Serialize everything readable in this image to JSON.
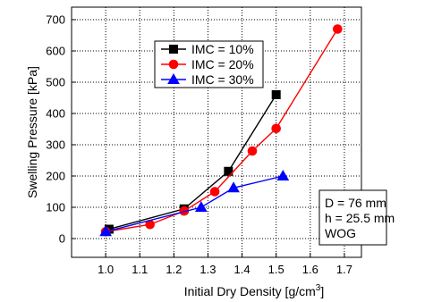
{
  "chart_data": {
    "type": "line",
    "title": "",
    "xlabel": "Initial Dry Density [g/cm",
    "xlabel_sup": "3",
    "xlabel_end": "]",
    "ylabel": "Swelling Pressure [kPa]",
    "xlim": [
      0.9,
      1.75
    ],
    "ylim": [
      -60,
      740
    ],
    "xticks": [
      1.0,
      1.1,
      1.2,
      1.3,
      1.4,
      1.5,
      1.6,
      1.7
    ],
    "yticks": [
      0,
      100,
      200,
      300,
      400,
      500,
      600,
      700
    ],
    "xtick_labels": [
      "1.0",
      "1.1",
      "1.2",
      "1.3",
      "1.4",
      "1.5",
      "1.6",
      "1.7"
    ],
    "ytick_labels": [
      "0",
      "100",
      "200",
      "300",
      "400",
      "500",
      "600",
      "700"
    ],
    "grid": true,
    "legend_position": "top-left",
    "series": [
      {
        "name": "IMC = 10%",
        "color": "#000000",
        "marker": "square",
        "x": [
          1.01,
          1.23,
          1.36,
          1.5
        ],
        "y": [
          30,
          95,
          215,
          460
        ]
      },
      {
        "name": "IMC = 20%",
        "color": "#ff0000",
        "marker": "circle",
        "x": [
          1.0,
          1.13,
          1.23,
          1.32,
          1.43,
          1.5,
          1.68
        ],
        "y": [
          22,
          45,
          88,
          150,
          280,
          352,
          670
        ]
      },
      {
        "name": "IMC = 30%",
        "color": "#0000ff",
        "marker": "triangle",
        "x": [
          1.0,
          1.28,
          1.375,
          1.52
        ],
        "y": [
          22,
          100,
          162,
          200
        ]
      }
    ],
    "annotation": [
      "D = 76 mm",
      "h = 25.5 mm",
      "WOG"
    ]
  }
}
